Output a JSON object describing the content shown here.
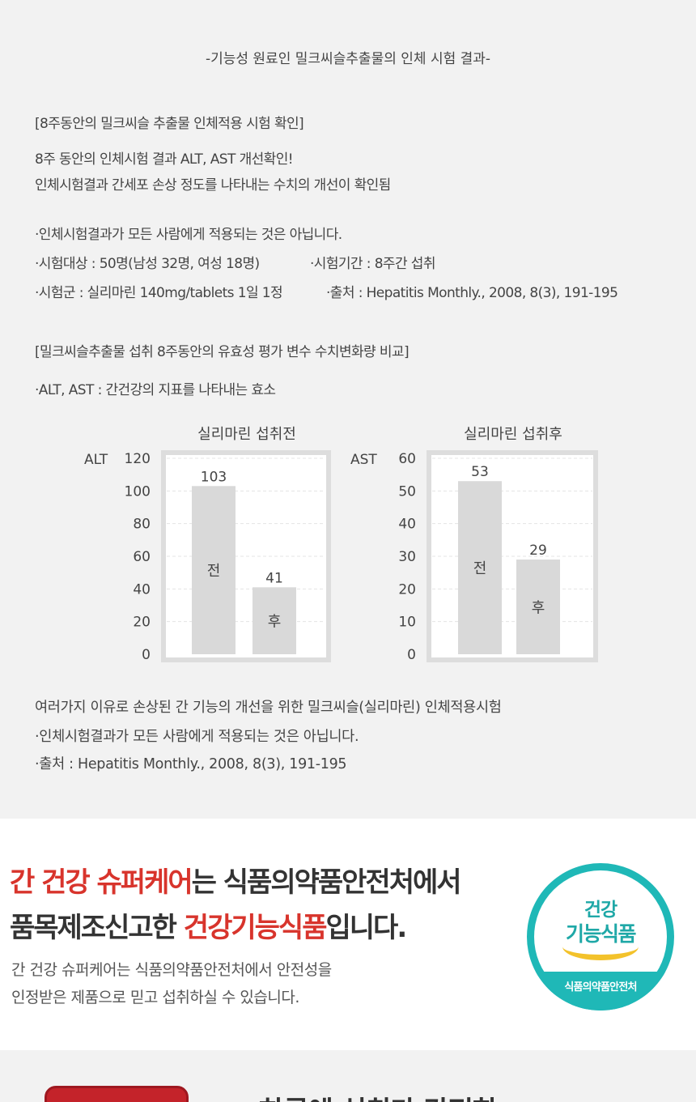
{
  "heading": "-기능성 원료인 밀크씨슬추출물의 인체 시험 결과-",
  "study": {
    "title": "[8주동안의 밀크씨슬 추출물 인체적용 시험 확인]",
    "line1": "8주 동안의 인체시험 결과 ALT, AST 개선확인!",
    "line2": "인체시험결과 간세포 손상 정도를 나타내는 수치의 개선이 확인됨",
    "disclaimer": "·인체시험결과가 모든 사람에게 적용되는 것은 아닙니다.",
    "subjects": "·시험대상 : 50명(남성 32명, 여성 18명)",
    "period": "·시험기간 : 8주간 섭취",
    "group": "·시험군 : 실리마린 140mg/tablets 1일 1정",
    "source": "·출처 : Hepatitis Monthly., 2008, 8(3), 191-195"
  },
  "compare": {
    "title": "[밀크씨슬추출물 섭취 8주동안의 유효성 평가 변수 수치변화량 비교]",
    "enzyme_note": "·ALT, AST : 간건강의 지표를 나타내는 효소"
  },
  "chart_data": [
    {
      "type": "bar",
      "title": "실리마린 섭취전",
      "ylabel": "ALT",
      "categories": [
        "전",
        "후"
      ],
      "values": [
        103,
        41
      ],
      "ylim": [
        0,
        120
      ],
      "yticks": [
        0,
        20,
        40,
        60,
        80,
        100,
        120
      ],
      "grid": true,
      "bar_color": "#d9d9d9"
    },
    {
      "type": "bar",
      "title": "실리마린 섭취후",
      "ylabel": "AST",
      "categories": [
        "전",
        "후"
      ],
      "values": [
        53,
        29
      ],
      "ylim": [
        0,
        60
      ],
      "yticks": [
        0,
        10,
        20,
        30,
        40,
        50,
        60
      ],
      "grid": true,
      "bar_color": "#d9d9d9"
    }
  ],
  "notes": {
    "line1": "여러가지 이유로 손상된 간 기능의 개선을 위한 밀크씨슬(실리마린) 인체적용시험",
    "line2": "·인체시험결과가 모든 사람에게 적용되는 것은 아닙니다.",
    "line3": "·출처 : Hepatitis Monthly., 2008, 8(3), 191-195"
  },
  "certification": {
    "h1_red": "간 건강 슈퍼케어",
    "h1_rest": "는 식품의약품안전처에서",
    "h2_pre": "품목제조신고한 ",
    "h2_red": "건강기능식품",
    "h2_post": "입니다.",
    "sub1": "간 건강 슈퍼케어는 식품의약품안전처에서 안전성을",
    "sub2": "인정받은 제품으로 믿고 섭취하실 수 있습니다.",
    "badge": {
      "line1": "건강",
      "line2": "기능식품",
      "line3": "식품의약품안전처"
    },
    "colors": {
      "accent_red": "#d8342c",
      "badge_teal": "#1fb8b7",
      "badge_yellow": "#f3c22b"
    }
  },
  "next_section": {
    "title": "하루에 섭취가 간편한"
  }
}
